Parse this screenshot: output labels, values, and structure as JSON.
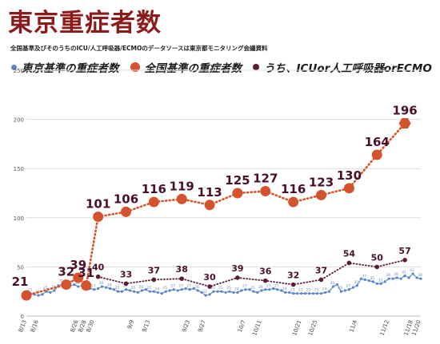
{
  "title": "東京重症者数",
  "subtitle": "全国基準及びそのうちのICU/人工呼吸器/ECMOのデータソースは東京都モニタリング会議資料",
  "colors": {
    "title": "#8b1a1a",
    "tokyo": "#5b84c8",
    "national": "#d4532c",
    "icu": "#5a1a38",
    "label": "#4a0f2b"
  },
  "chart_data": {
    "type": "line",
    "xlabel": "",
    "ylabel": "",
    "ylim": [
      0,
      250
    ],
    "yticks": [
      "0",
      "50",
      "100",
      "150",
      "200",
      "250"
    ],
    "xticks": [
      "8/13",
      "8/16",
      "8/26",
      "8/28",
      "8/30",
      "9/9",
      "9/13",
      "9/23",
      "9/27",
      "10/7",
      "10/11",
      "10/21",
      "10/25",
      "11/4",
      "11/12",
      "11/18",
      "11/20"
    ],
    "grid": true,
    "legend_position": "top-left",
    "series": [
      {
        "name": "東京基準の重症者数",
        "marker": "small-dot",
        "points": [
          [
            "8/13",
            21
          ],
          [
            "8/14",
            23
          ],
          [
            "8/15",
            22
          ],
          [
            "8/16",
            21
          ],
          [
            "8/17",
            22
          ],
          [
            "8/18",
            25
          ],
          [
            "8/19",
            24
          ],
          [
            "8/20",
            26
          ],
          [
            "8/21",
            31
          ],
          [
            "8/22",
            32
          ],
          [
            "8/23",
            33
          ],
          [
            "8/24",
            31
          ],
          [
            "8/25",
            32
          ],
          [
            "8/26",
            30
          ],
          [
            "8/27",
            31
          ],
          [
            "8/28",
            30
          ],
          [
            "8/29",
            28
          ],
          [
            "8/30",
            27
          ],
          [
            "8/31",
            28
          ],
          [
            "9/1",
            30
          ],
          [
            "9/2",
            29
          ],
          [
            "9/3",
            28
          ],
          [
            "9/4",
            27
          ],
          [
            "9/5",
            25
          ],
          [
            "9/6",
            25
          ],
          [
            "9/7",
            27
          ],
          [
            "9/8",
            26
          ],
          [
            "9/9",
            25
          ],
          [
            "9/10",
            24
          ],
          [
            "9/11",
            26
          ],
          [
            "9/12",
            27
          ],
          [
            "9/13",
            25
          ],
          [
            "9/14",
            25
          ],
          [
            "9/15",
            24
          ],
          [
            "9/16",
            23
          ],
          [
            "9/17",
            25
          ],
          [
            "9/18",
            26
          ],
          [
            "9/19",
            27
          ],
          [
            "9/20",
            26
          ],
          [
            "9/21",
            27
          ],
          [
            "9/22",
            28
          ],
          [
            "9/23",
            27
          ],
          [
            "9/24",
            28
          ],
          [
            "9/25",
            26
          ],
          [
            "9/26",
            24
          ],
          [
            "9/27",
            21
          ],
          [
            "9/28",
            22
          ],
          [
            "9/29",
            25
          ],
          [
            "9/30",
            25
          ],
          [
            "10/1",
            25
          ],
          [
            "10/2",
            24
          ],
          [
            "10/3",
            25
          ],
          [
            "10/4",
            24
          ],
          [
            "10/5",
            24
          ],
          [
            "10/6",
            26
          ],
          [
            "10/7",
            27
          ],
          [
            "10/8",
            27
          ],
          [
            "10/9",
            25
          ],
          [
            "10/10",
            24
          ],
          [
            "10/11",
            26
          ],
          [
            "10/12",
            27
          ],
          [
            "10/13",
            27
          ],
          [
            "10/14",
            28
          ],
          [
            "10/15",
            27
          ],
          [
            "10/16",
            26
          ],
          [
            "10/17",
            24
          ],
          [
            "10/18",
            24
          ],
          [
            "10/19",
            23
          ],
          [
            "10/20",
            23
          ],
          [
            "10/21",
            23
          ],
          [
            "10/22",
            23
          ],
          [
            "10/23",
            23
          ],
          [
            "10/24",
            23
          ],
          [
            "10/25",
            23
          ],
          [
            "10/26",
            23
          ],
          [
            "10/27",
            24
          ],
          [
            "10/28",
            25
          ],
          [
            "10/29",
            30
          ],
          [
            "10/30",
            32
          ],
          [
            "10/31",
            25
          ],
          [
            "11/1",
            26
          ],
          [
            "11/2",
            27
          ],
          [
            "11/3",
            29
          ],
          [
            "11/4",
            31
          ],
          [
            "11/5",
            38
          ],
          [
            "11/6",
            37
          ],
          [
            "11/7",
            36
          ],
          [
            "11/8",
            35
          ],
          [
            "11/9",
            33
          ],
          [
            "11/10",
            33
          ],
          [
            "11/11",
            35
          ],
          [
            "11/12",
            38
          ],
          [
            "11/13",
            38
          ],
          [
            "11/14",
            39
          ],
          [
            "11/15",
            38
          ],
          [
            "11/16",
            41
          ],
          [
            "11/17",
            39
          ],
          [
            "11/18",
            43
          ],
          [
            "11/19",
            39
          ],
          [
            "11/20",
            38
          ]
        ]
      },
      {
        "name": "全国基準の重症者数",
        "marker": "large-dot",
        "points": [
          [
            "8/13",
            21
          ],
          [
            "8/23",
            32
          ],
          [
            "8/26",
            39
          ],
          [
            "8/28",
            31
          ],
          [
            "8/31",
            101
          ],
          [
            "9/7",
            106
          ],
          [
            "9/14",
            116
          ],
          [
            "9/21",
            119
          ],
          [
            "9/28",
            113
          ],
          [
            "10/5",
            125
          ],
          [
            "10/12",
            127
          ],
          [
            "10/19",
            116
          ],
          [
            "10/26",
            123
          ],
          [
            "11/2",
            130
          ],
          [
            "11/9",
            164
          ],
          [
            "11/16",
            196
          ]
        ]
      },
      {
        "name": "うち、ICUor人工呼吸器orECMO",
        "marker": "medium-dot",
        "points": [
          [
            "8/31",
            40
          ],
          [
            "9/7",
            33
          ],
          [
            "9/14",
            37
          ],
          [
            "9/21",
            38
          ],
          [
            "9/28",
            30
          ],
          [
            "10/5",
            39
          ],
          [
            "10/12",
            36
          ],
          [
            "10/19",
            32
          ],
          [
            "10/26",
            37
          ],
          [
            "11/2",
            54
          ],
          [
            "11/9",
            50
          ],
          [
            "11/16",
            57
          ]
        ]
      }
    ],
    "data_labels": [
      {
        "series": 1,
        "point": 0,
        "text": "21"
      },
      {
        "series": 1,
        "point": 1,
        "text": "32"
      },
      {
        "series": 1,
        "point": 2,
        "text": "39"
      },
      {
        "series": 1,
        "point": 3,
        "text": "31"
      },
      {
        "series": 1,
        "point": 4,
        "text": "101"
      },
      {
        "series": 1,
        "point": 5,
        "text": "106"
      },
      {
        "series": 1,
        "point": 6,
        "text": "116"
      },
      {
        "series": 1,
        "point": 7,
        "text": "119"
      },
      {
        "series": 1,
        "point": 8,
        "text": "113"
      },
      {
        "series": 1,
        "point": 9,
        "text": "125"
      },
      {
        "series": 1,
        "point": 10,
        "text": "127"
      },
      {
        "series": 1,
        "point": 11,
        "text": "116"
      },
      {
        "series": 1,
        "point": 12,
        "text": "123"
      },
      {
        "series": 1,
        "point": 13,
        "text": "130"
      },
      {
        "series": 1,
        "point": 14,
        "text": "164"
      },
      {
        "series": 1,
        "point": 15,
        "text": "196"
      },
      {
        "series": 2,
        "point": 0,
        "text": "40"
      },
      {
        "series": 2,
        "point": 1,
        "text": "33"
      },
      {
        "series": 2,
        "point": 2,
        "text": "37"
      },
      {
        "series": 2,
        "point": 3,
        "text": "38"
      },
      {
        "series": 2,
        "point": 4,
        "text": "30"
      },
      {
        "series": 2,
        "point": 5,
        "text": "39"
      },
      {
        "series": 2,
        "point": 6,
        "text": "36"
      },
      {
        "series": 2,
        "point": 7,
        "text": "32"
      },
      {
        "series": 2,
        "point": 8,
        "text": "37"
      },
      {
        "series": 2,
        "point": 9,
        "text": "54"
      },
      {
        "series": 2,
        "point": 10,
        "text": "50"
      },
      {
        "series": 2,
        "point": 11,
        "text": "57"
      }
    ]
  }
}
